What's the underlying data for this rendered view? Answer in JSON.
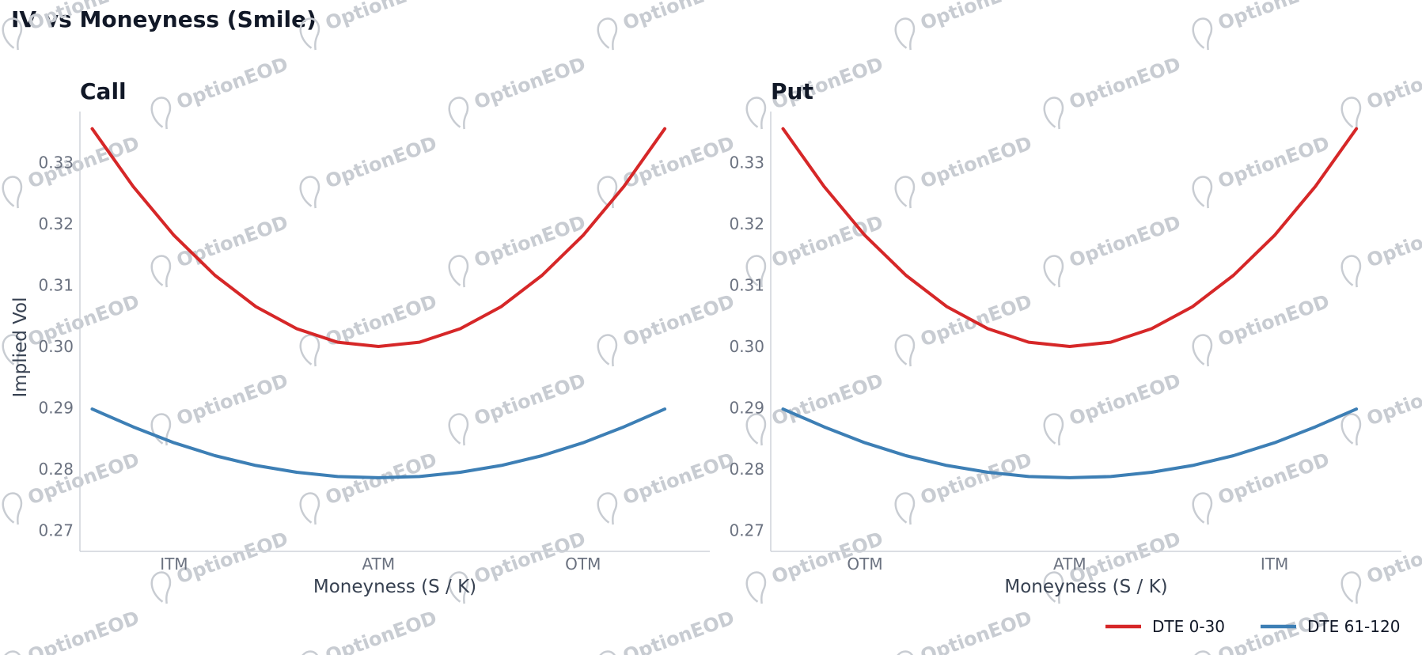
{
  "title": "IV vs Moneyness (Smile)",
  "watermark": "OptionEOD",
  "colors": {
    "short": "#d62728",
    "long": "#3d7fb5"
  },
  "chart_data": [
    {
      "type": "line",
      "title": "Call",
      "xlabel": "Moneyness (S / K)",
      "ylabel": "Implied Vol",
      "x_ticks": [
        {
          "x": 0.95,
          "label": "ITM"
        },
        {
          "x": 1.0,
          "label": "ATM"
        },
        {
          "x": 1.05,
          "label": "OTM"
        }
      ],
      "xlim": [
        0.927,
        1.081
      ],
      "y_ticks": [
        0.27,
        0.28,
        0.29,
        0.3,
        0.31,
        0.32,
        0.33
      ],
      "ylim": [
        0.2666,
        0.3383
      ],
      "series": [
        {
          "name": "DTE 0-30",
          "color": "#d62728",
          "x": [
            0.93,
            0.94,
            0.95,
            0.96,
            0.97,
            0.98,
            0.99,
            1.0,
            1.01,
            1.02,
            1.03,
            1.04,
            1.05,
            1.06,
            1.07
          ],
          "y": [
            0.3355,
            0.3261,
            0.3181,
            0.3116,
            0.3065,
            0.3029,
            0.3007,
            0.3,
            0.3007,
            0.3029,
            0.3065,
            0.3116,
            0.3181,
            0.3261,
            0.3355
          ]
        },
        {
          "name": "DTE 61-120",
          "color": "#3d7fb5",
          "x": [
            0.93,
            0.94,
            0.95,
            0.96,
            0.97,
            0.98,
            0.99,
            1.0,
            1.01,
            1.02,
            1.03,
            1.04,
            1.05,
            1.06,
            1.07
          ],
          "y": [
            0.2898,
            0.2869,
            0.2843,
            0.2822,
            0.2806,
            0.2795,
            0.2788,
            0.2786,
            0.2788,
            0.2795,
            0.2806,
            0.2822,
            0.2843,
            0.2869,
            0.2898
          ]
        }
      ]
    },
    {
      "type": "line",
      "title": "Put",
      "xlabel": "Moneyness (S / K)",
      "ylabel": "",
      "x_ticks": [
        {
          "x": 0.95,
          "label": "OTM"
        },
        {
          "x": 1.0,
          "label": "ATM"
        },
        {
          "x": 1.05,
          "label": "ITM"
        }
      ],
      "xlim": [
        0.927,
        1.081
      ],
      "y_ticks": [
        0.27,
        0.28,
        0.29,
        0.3,
        0.31,
        0.32,
        0.33
      ],
      "ylim": [
        0.2666,
        0.3383
      ],
      "series": [
        {
          "name": "DTE 0-30",
          "color": "#d62728",
          "x": [
            0.93,
            0.94,
            0.95,
            0.96,
            0.97,
            0.98,
            0.99,
            1.0,
            1.01,
            1.02,
            1.03,
            1.04,
            1.05,
            1.06,
            1.07
          ],
          "y": [
            0.3355,
            0.3261,
            0.3181,
            0.3116,
            0.3065,
            0.3029,
            0.3007,
            0.3,
            0.3007,
            0.3029,
            0.3065,
            0.3116,
            0.3181,
            0.3261,
            0.3355
          ]
        },
        {
          "name": "DTE 61-120",
          "color": "#3d7fb5",
          "x": [
            0.93,
            0.94,
            0.95,
            0.96,
            0.97,
            0.98,
            0.99,
            1.0,
            1.01,
            1.02,
            1.03,
            1.04,
            1.05,
            1.06,
            1.07
          ],
          "y": [
            0.2898,
            0.2869,
            0.2843,
            0.2822,
            0.2806,
            0.2795,
            0.2788,
            0.2786,
            0.2788,
            0.2795,
            0.2806,
            0.2822,
            0.2843,
            0.2869,
            0.2898
          ]
        }
      ]
    }
  ],
  "legend": {
    "position": "bottom-right",
    "items": [
      {
        "label": "DTE 0-30",
        "color": "#d62728"
      },
      {
        "label": "DTE 61-120",
        "color": "#3d7fb5"
      }
    ]
  }
}
